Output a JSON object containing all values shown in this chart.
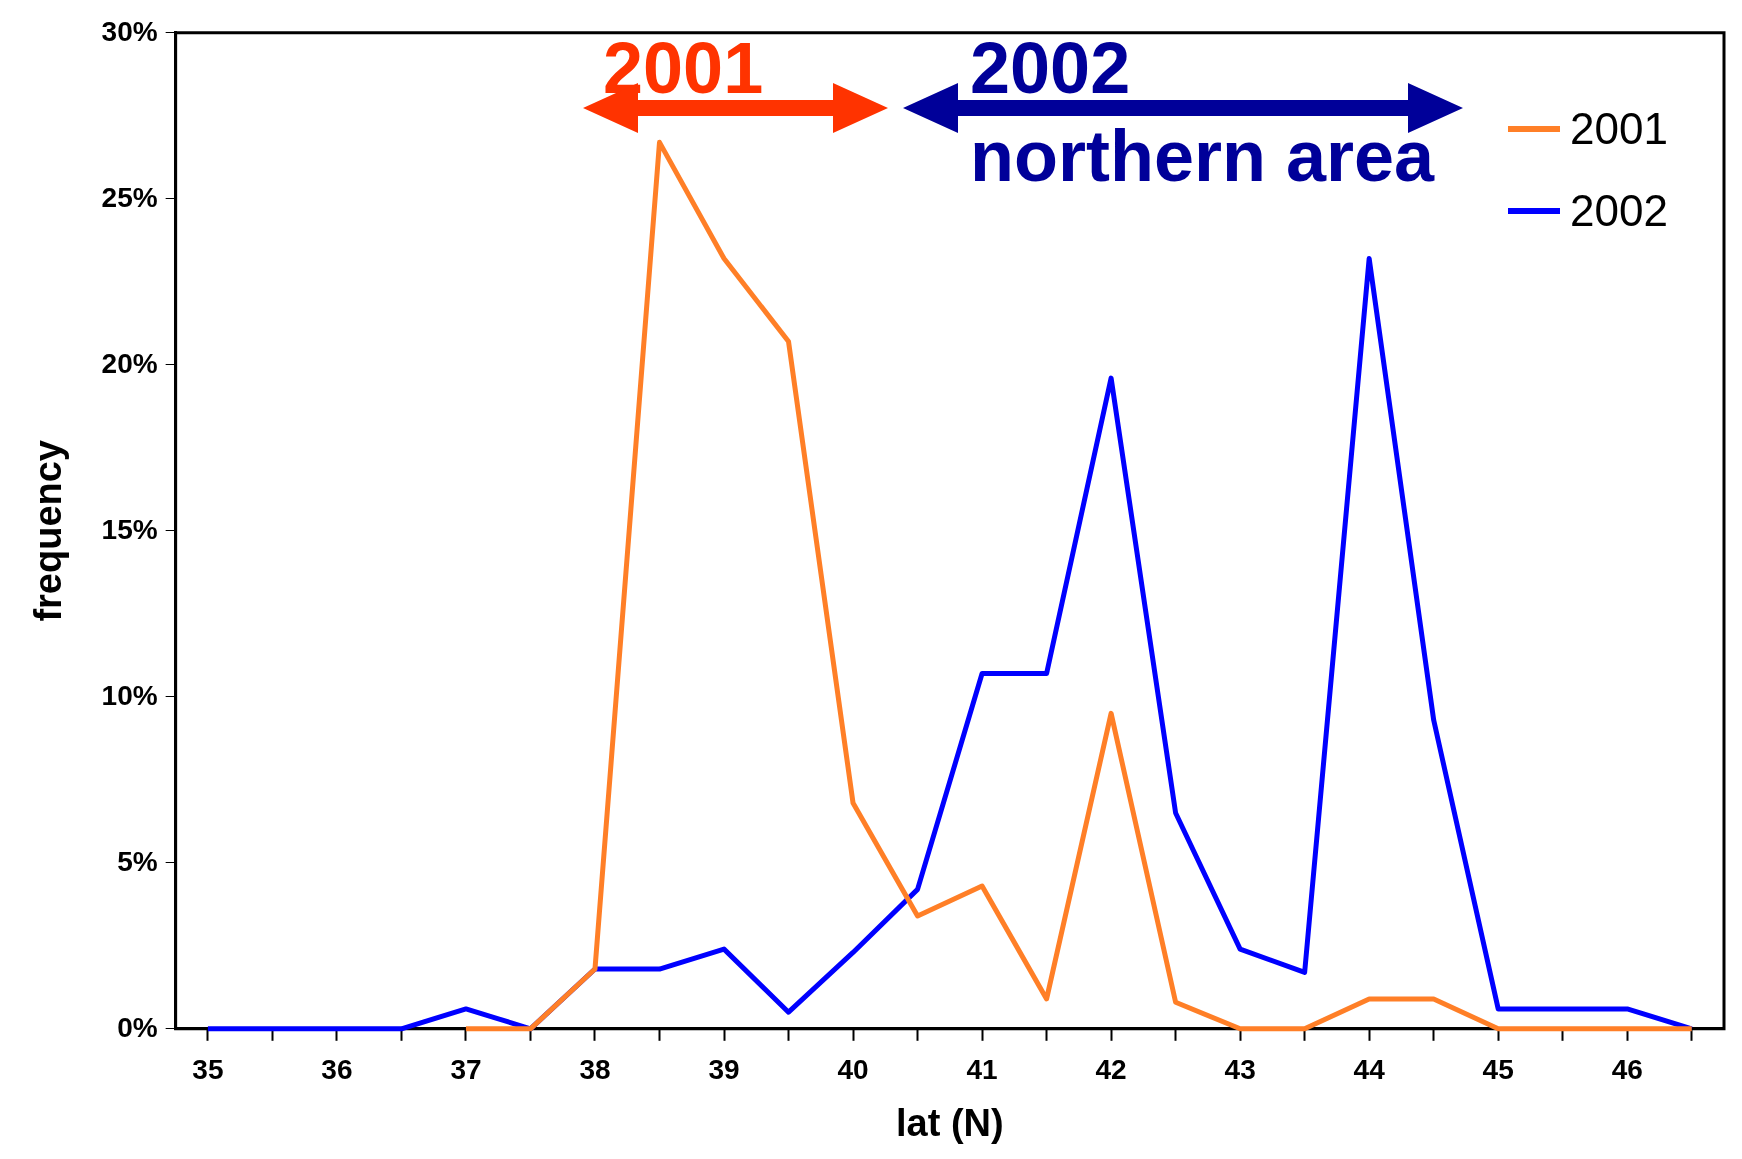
{
  "chart_data": {
    "type": "line",
    "xlabel": "lat (N)",
    "ylabel": "frequency",
    "x": [
      35,
      35.5,
      36,
      36.5,
      37,
      37.5,
      38,
      38.5,
      39,
      39.5,
      40,
      40.5,
      41,
      41.5,
      42,
      42.5,
      43,
      43.5,
      44,
      44.5,
      45,
      45.5,
      46,
      46.5
    ],
    "series": [
      {
        "name": "2001",
        "color": "#ff7f27",
        "values": [
          null,
          null,
          null,
          null,
          0,
          0,
          1.8,
          26.7,
          23.2,
          20.7,
          6.8,
          3.4,
          4.3,
          0.9,
          9.5,
          0.8,
          0,
          0,
          0.9,
          0.9,
          0,
          0,
          0,
          0
        ]
      },
      {
        "name": "2002",
        "color": "#0000ff",
        "values": [
          0,
          0,
          0,
          0,
          0.6,
          0,
          1.8,
          1.8,
          2.4,
          0.5,
          2.3,
          4.2,
          10.7,
          10.7,
          19.6,
          6.5,
          2.4,
          1.7,
          23.2,
          9.3,
          0.6,
          0.6,
          0.6,
          0
        ]
      }
    ],
    "xlim": [
      34.75,
      46.75
    ],
    "xticks": [
      35,
      {
        "value": 35.5,
        "label": null
      },
      36,
      {
        "value": 36.5,
        "label": null
      },
      37,
      {
        "value": 37.5,
        "label": null
      },
      38,
      {
        "value": 38.5,
        "label": null
      },
      39,
      {
        "value": 39.5,
        "label": null
      },
      40,
      {
        "value": 40.5,
        "label": null
      },
      41,
      {
        "value": 41.5,
        "label": null
      },
      42,
      {
        "value": 42.5,
        "label": null
      },
      43,
      {
        "value": 43.5,
        "label": null
      },
      44,
      {
        "value": 44.5,
        "label": null
      },
      45,
      {
        "value": 45.5,
        "label": null
      },
      46,
      {
        "value": 46.5,
        "label": null
      }
    ],
    "ylim": [
      0,
      30
    ],
    "yticks": [
      {
        "value": 0,
        "label": "0%"
      },
      {
        "value": 5,
        "label": "5%"
      },
      {
        "value": 10,
        "label": "10%"
      },
      {
        "value": 15,
        "label": "15%"
      },
      {
        "value": 20,
        "label": "20%"
      },
      {
        "value": 25,
        "label": "25%"
      },
      {
        "value": 30,
        "label": "30%"
      }
    ],
    "annotations": [
      "2001",
      "2002",
      "northern area"
    ],
    "legend": "top right",
    "grid": false,
    "marker": "none",
    "line_style": "solid"
  }
}
